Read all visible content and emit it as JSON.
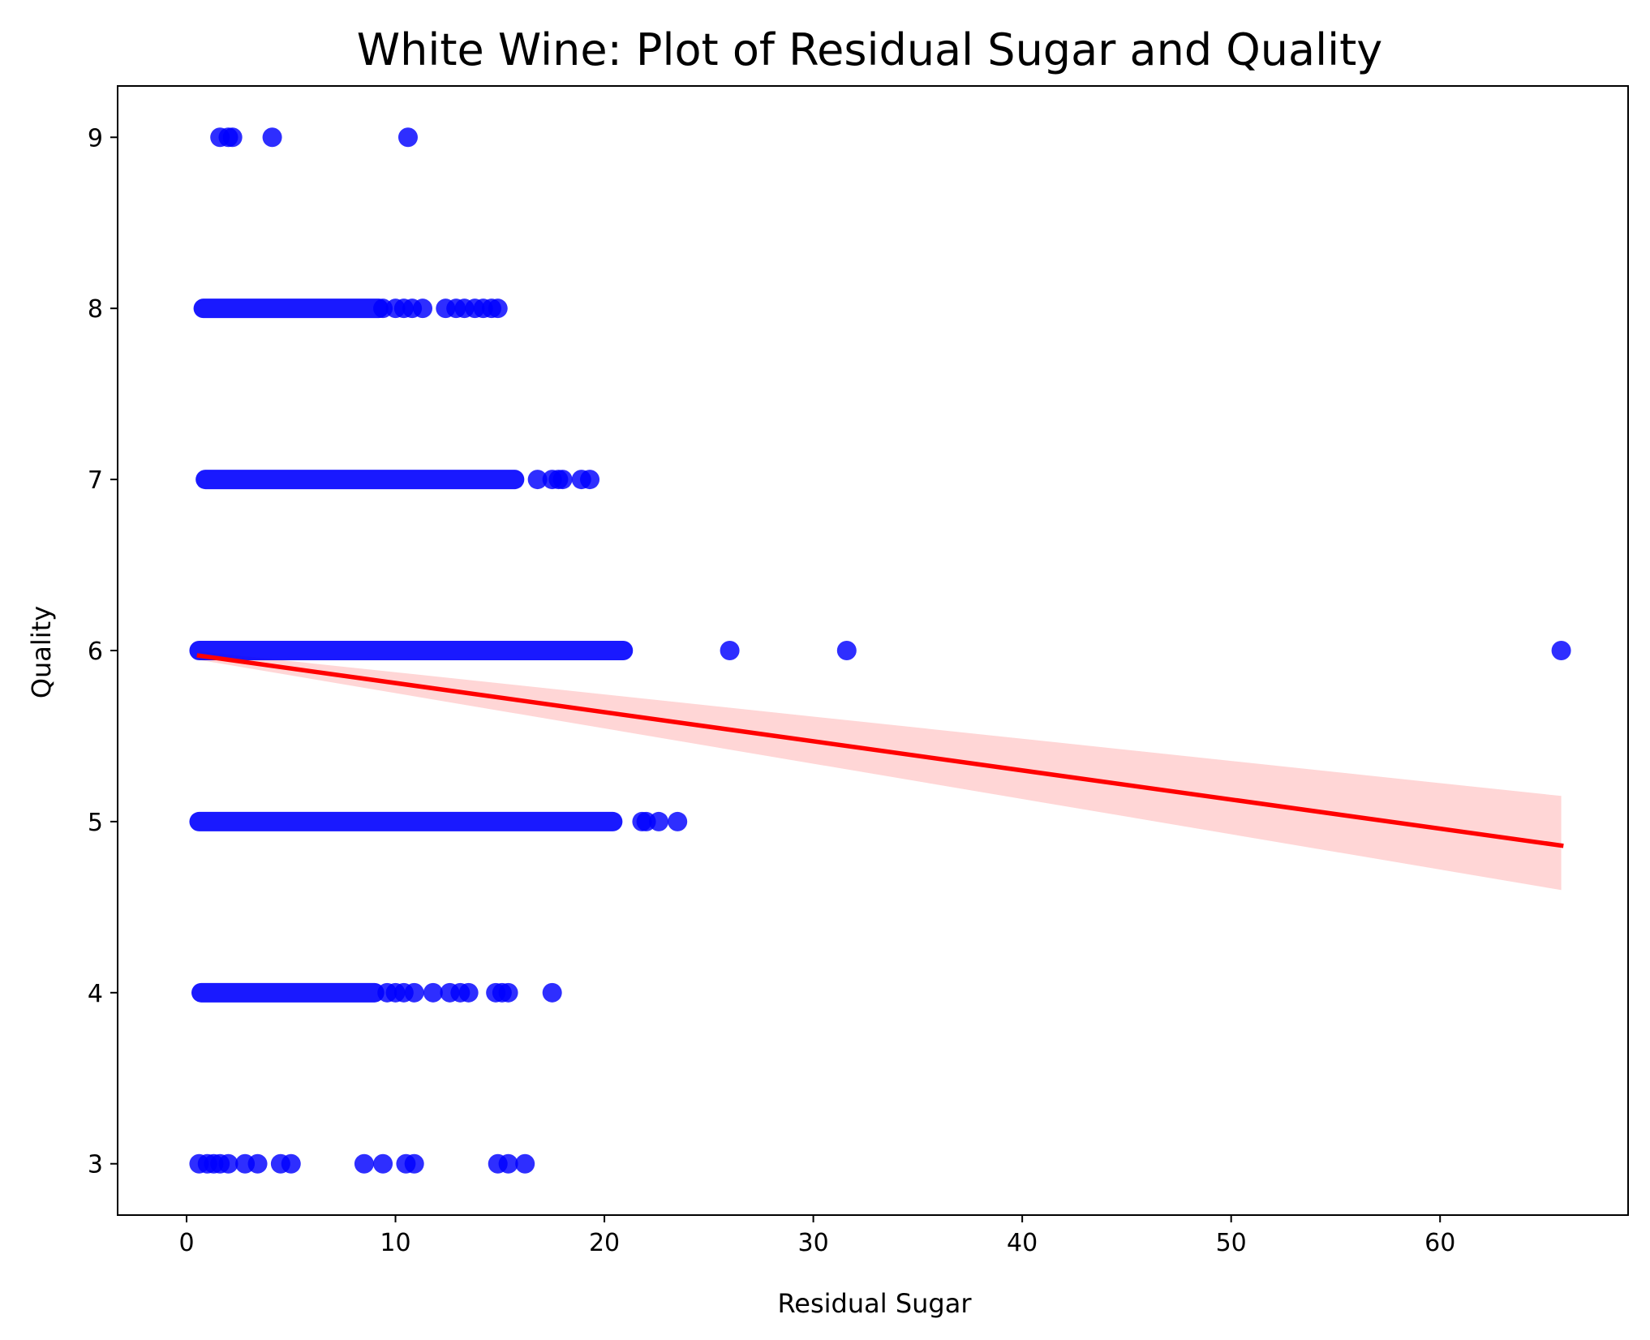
{
  "chart_data": {
    "type": "scatter",
    "title": "White Wine: Plot of Residual Sugar and Quality",
    "xlabel": "Residual Sugar",
    "ylabel": "Quality",
    "xlim": [
      -3.3,
      69
    ],
    "ylim": [
      2.7,
      9.3
    ],
    "xticks": [
      0,
      10,
      20,
      30,
      40,
      50,
      60
    ],
    "yticks": [
      3,
      4,
      5,
      6,
      7,
      8,
      9
    ],
    "grid": false,
    "point_color": "#0000ff",
    "line_color": "#ff0000",
    "band_color": "#ffd6d6",
    "series": [
      {
        "quality": 9,
        "segments": [],
        "points": [
          1.6,
          2.0,
          2.2,
          4.1,
          10.6
        ]
      },
      {
        "quality": 8,
        "segments": [
          [
            0.8,
            9.2
          ]
        ],
        "points": [
          9.4,
          10.0,
          10.4,
          10.8,
          11.3,
          12.4,
          12.9,
          13.3,
          13.8,
          14.2,
          14.6,
          14.9
        ]
      },
      {
        "quality": 7,
        "segments": [
          [
            0.9,
            15.7
          ]
        ],
        "points": [
          16.8,
          17.5,
          17.8,
          18.0,
          18.9,
          19.3
        ]
      },
      {
        "quality": 6,
        "segments": [
          [
            0.6,
            20.9
          ]
        ],
        "points": [
          26.0,
          31.6,
          65.8
        ]
      },
      {
        "quality": 5,
        "segments": [
          [
            0.6,
            20.4
          ]
        ],
        "points": [
          21.8,
          22.0,
          22.6,
          23.5
        ]
      },
      {
        "quality": 4,
        "segments": [
          [
            0.7,
            9.0
          ]
        ],
        "points": [
          9.6,
          10.0,
          10.4,
          10.9,
          11.8,
          12.6,
          13.1,
          13.5,
          14.8,
          15.1,
          15.4,
          17.5
        ]
      },
      {
        "quality": 3,
        "segments": [],
        "points": [
          0.6,
          1.0,
          1.3,
          1.6,
          2.0,
          2.8,
          3.4,
          4.5,
          5.0,
          8.5,
          9.4,
          10.5,
          10.9,
          14.9,
          15.4,
          16.2
        ]
      }
    ],
    "regression": {
      "x": [
        0.6,
        65.8
      ],
      "y": [
        5.97,
        4.86
      ],
      "ci_upper": [
        5.995,
        5.15
      ],
      "ci_lower": [
        5.945,
        4.6
      ]
    }
  }
}
